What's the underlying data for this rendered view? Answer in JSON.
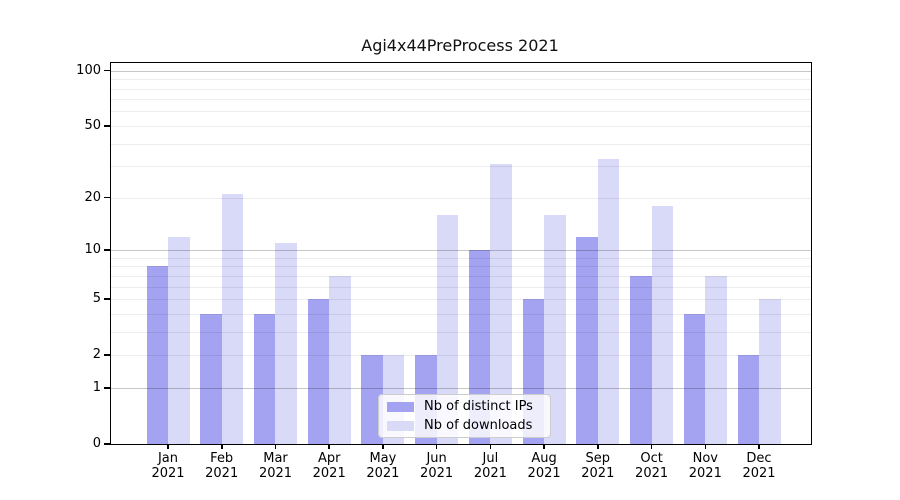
{
  "title": "Agi4x44PreProcess 2021",
  "chart_data": {
    "type": "bar",
    "title": "Agi4x44PreProcess 2021",
    "categories": [
      "Jan 2021",
      "Feb 2021",
      "Mar 2021",
      "Apr 2021",
      "May 2021",
      "Jun 2021",
      "Jul 2021",
      "Aug 2021",
      "Sep 2021",
      "Oct 2021",
      "Nov 2021",
      "Dec 2021"
    ],
    "series": [
      {
        "name": "Nb of distinct IPs",
        "color": "#a3a3f1",
        "values": [
          8,
          4,
          4,
          5,
          2,
          2,
          10,
          5,
          12,
          7,
          4,
          2
        ]
      },
      {
        "name": "Nb of downloads",
        "color": "#d9d9f8",
        "values": [
          12,
          21,
          11,
          7,
          2,
          16,
          31,
          16,
          33,
          18,
          7,
          5
        ]
      }
    ],
    "xlabel": "",
    "ylabel": "",
    "y_scale": "log10(1+y)",
    "ylim": [
      0,
      110
    ],
    "y_ticks": [
      0,
      1,
      2,
      5,
      10,
      20,
      50,
      100
    ],
    "y_major_gridlines": [
      1,
      10,
      100
    ],
    "y_minor_gridlines": [
      2,
      3,
      4,
      5,
      6,
      7,
      8,
      9,
      20,
      30,
      40,
      50,
      60,
      70,
      80,
      90
    ],
    "grid": true,
    "legend_position": "inside lower center-right"
  },
  "legend": {
    "items": [
      {
        "label": "Nb of distinct IPs",
        "color": "#a3a3f1"
      },
      {
        "label": "Nb of downloads",
        "color": "#d9d9f8"
      }
    ]
  },
  "colors": {
    "bar_distinct_ips": "#a3a3f1",
    "bar_downloads": "#d9d9f8",
    "axis": "#000000",
    "grid_major": "#c9c9c9",
    "grid_minor": "#ededed",
    "background": "#ffffff",
    "text": "#111111"
  }
}
